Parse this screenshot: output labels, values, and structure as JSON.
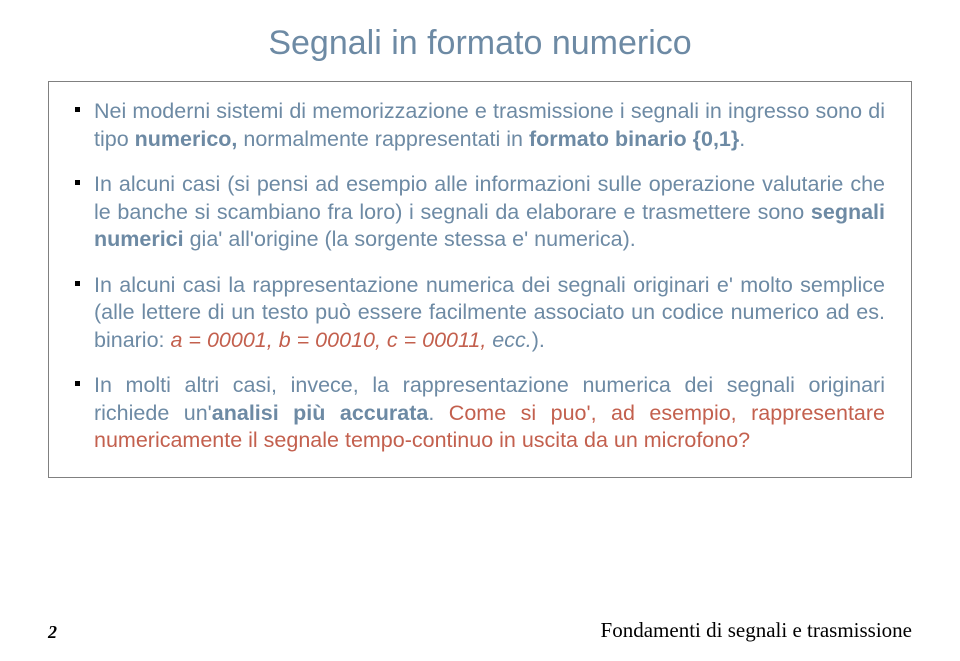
{
  "slide": {
    "title": "Segnali in formato numerico",
    "title_color": "#6d8aa4",
    "body_color": "#6d8aa4",
    "accent_color": "#c3604e",
    "bullets": [
      {
        "pre": "Nei moderni sistemi di memorizzazione e trasmissione i segnali in ingresso sono di tipo ",
        "bold1": "numerico,",
        "mid": " normalmente rappresentati in ",
        "bold2": "formato binario {0,1}",
        "post": "."
      },
      {
        "pre": "In alcuni casi (si pensi ad esempio alle informazioni sulle operazione valutarie che le banche si scambiano fra loro) i segnali da elaborare e trasmettere sono ",
        "bold1": "segnali numerici",
        "post": " gia' all'origine (la sorgente stessa e' numerica)."
      },
      {
        "pre": "In alcuni casi la rappresentazione numerica dei segnali originari e' molto semplice (alle lettere di un testo può essere facilmente associato un codice numerico ad es. binario: ",
        "accent_italic": "a = 00001, b = 00010, c = 00011,",
        "post_italic": " ecc.",
        "post": ")."
      },
      {
        "pre": "In molti altri casi, invece, la rappresentazione numerica dei segnali originari richiede un'",
        "bold1": "analisi più accurata",
        "post1": ". ",
        "accent": "Come si puo', ad esempio, rappresentare numericamente il segnale tempo-continuo in uscita da un microfono?"
      }
    ]
  },
  "footer": {
    "page": "2",
    "label": "Fondamenti di segnali e trasmissione"
  }
}
